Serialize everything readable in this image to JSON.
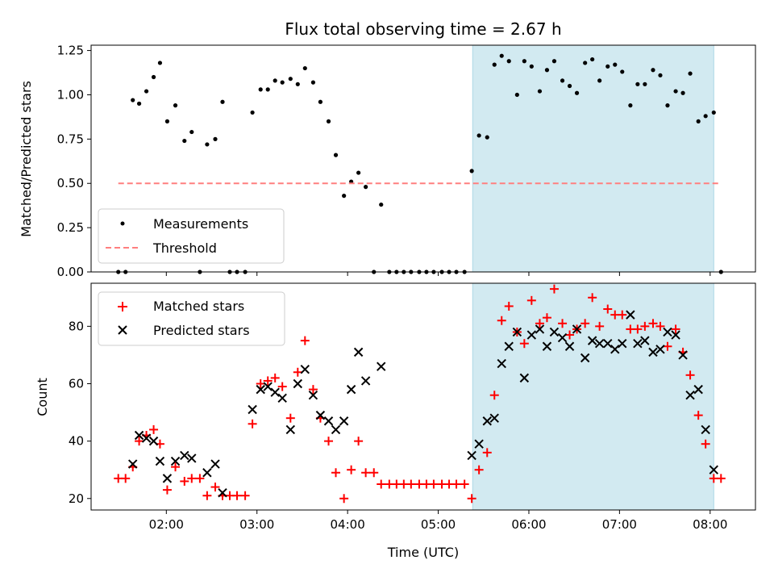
{
  "colors": {
    "measurement": "#000000",
    "threshold": "#ff7f7f",
    "matched": "#ff0000",
    "predicted": "#000000",
    "shade": "#add8e6"
  },
  "chart_data": [
    {
      "type": "scatter",
      "title": "Flux total observing time = 2.67 h",
      "ylabel": "Matched/Predicted stars",
      "xlabel": "",
      "x_unit": "hours UTC",
      "xlim": [
        1.17,
        8.5
      ],
      "ylim": [
        0.0,
        1.28
      ],
      "x_ticks": [
        2,
        3,
        4,
        5,
        6,
        7,
        8
      ],
      "y_ticks": [
        0.0,
        0.25,
        0.5,
        0.75,
        1.0,
        1.25
      ],
      "y_tick_labels": [
        "0.00",
        "0.25",
        "0.50",
        "0.75",
        "1.00",
        "1.25"
      ],
      "shaded_region": [
        5.38,
        8.04
      ],
      "legend": {
        "position": "lower-left",
        "entries": [
          "Measurements",
          "Threshold"
        ]
      },
      "series": [
        {
          "name": "Measurements",
          "marker": "dot",
          "points": [
            [
              1.47,
              0
            ],
            [
              1.55,
              0
            ],
            [
              1.63,
              0.97
            ],
            [
              1.7,
              0.95
            ],
            [
              1.78,
              1.02
            ],
            [
              1.86,
              1.1
            ],
            [
              1.93,
              1.18
            ],
            [
              2.01,
              0.85
            ],
            [
              2.1,
              0.94
            ],
            [
              2.2,
              0.74
            ],
            [
              2.28,
              0.79
            ],
            [
              2.37,
              0
            ],
            [
              2.45,
              0.72
            ],
            [
              2.54,
              0.75
            ],
            [
              2.62,
              0.96
            ],
            [
              2.7,
              0
            ],
            [
              2.78,
              0
            ],
            [
              2.87,
              0
            ],
            [
              2.95,
              0.9
            ],
            [
              3.04,
              1.03
            ],
            [
              3.12,
              1.03
            ],
            [
              3.2,
              1.08
            ],
            [
              3.28,
              1.07
            ],
            [
              3.37,
              1.09
            ],
            [
              3.45,
              1.06
            ],
            [
              3.53,
              1.15
            ],
            [
              3.62,
              1.07
            ],
            [
              3.7,
              0.96
            ],
            [
              3.79,
              0.85
            ],
            [
              3.87,
              0.66
            ],
            [
              3.96,
              0.43
            ],
            [
              4.04,
              0.51
            ],
            [
              4.12,
              0.56
            ],
            [
              4.2,
              0.48
            ],
            [
              4.29,
              0
            ],
            [
              4.37,
              0.38
            ],
            [
              4.46,
              0
            ],
            [
              4.54,
              0
            ],
            [
              4.62,
              0
            ],
            [
              4.7,
              0
            ],
            [
              4.79,
              0
            ],
            [
              4.87,
              0
            ],
            [
              4.95,
              0
            ],
            [
              5.04,
              0
            ],
            [
              5.12,
              0
            ],
            [
              5.2,
              0
            ],
            [
              5.29,
              0
            ],
            [
              5.37,
              0.57
            ],
            [
              5.45,
              0.77
            ],
            [
              5.54,
              0.76
            ],
            [
              5.62,
              1.17
            ],
            [
              5.7,
              1.22
            ],
            [
              5.78,
              1.19
            ],
            [
              5.87,
              1.0
            ],
            [
              5.95,
              1.19
            ],
            [
              6.03,
              1.16
            ],
            [
              6.12,
              1.02
            ],
            [
              6.2,
              1.14
            ],
            [
              6.28,
              1.19
            ],
            [
              6.37,
              1.08
            ],
            [
              6.45,
              1.05
            ],
            [
              6.53,
              1.01
            ],
            [
              6.62,
              1.18
            ],
            [
              6.7,
              1.2
            ],
            [
              6.78,
              1.08
            ],
            [
              6.87,
              1.16
            ],
            [
              6.95,
              1.17
            ],
            [
              7.03,
              1.13
            ],
            [
              7.12,
              0.94
            ],
            [
              7.2,
              1.06
            ],
            [
              7.28,
              1.06
            ],
            [
              7.37,
              1.14
            ],
            [
              7.45,
              1.11
            ],
            [
              7.53,
              0.94
            ],
            [
              7.62,
              1.02
            ],
            [
              7.7,
              1.01
            ],
            [
              7.78,
              1.12
            ],
            [
              7.87,
              0.85
            ],
            [
              7.95,
              0.88
            ],
            [
              8.04,
              0.9
            ],
            [
              8.12,
              0
            ]
          ]
        },
        {
          "name": "Threshold",
          "style": "dashed",
          "points": [
            [
              1.47,
              0.5
            ],
            [
              8.12,
              0.5
            ]
          ]
        }
      ]
    },
    {
      "type": "scatter",
      "title": "",
      "xlabel": "Time (UTC)",
      "ylabel": "Count",
      "x_unit": "hours UTC",
      "xlim": [
        1.17,
        8.5
      ],
      "ylim": [
        16,
        95
      ],
      "x_ticks": [
        2,
        3,
        4,
        5,
        6,
        7,
        8
      ],
      "x_tick_labels": [
        "02:00",
        "03:00",
        "04:00",
        "05:00",
        "06:00",
        "07:00",
        "08:00"
      ],
      "y_ticks": [
        20,
        40,
        60,
        80
      ],
      "y_tick_labels": [
        "20",
        "40",
        "60",
        "80"
      ],
      "shaded_region": [
        5.38,
        8.04
      ],
      "legend": {
        "position": "upper-left",
        "entries": [
          "Matched stars",
          "Predicted stars"
        ]
      },
      "series": [
        {
          "name": "Matched stars",
          "marker": "plus",
          "points": [
            [
              1.47,
              27
            ],
            [
              1.55,
              27
            ],
            [
              1.63,
              31
            ],
            [
              1.7,
              40
            ],
            [
              1.78,
              42
            ],
            [
              1.86,
              44
            ],
            [
              1.93,
              39
            ],
            [
              2.01,
              23
            ],
            [
              2.1,
              31
            ],
            [
              2.2,
              26
            ],
            [
              2.28,
              27
            ],
            [
              2.37,
              27
            ],
            [
              2.45,
              21
            ],
            [
              2.54,
              24
            ],
            [
              2.62,
              21
            ],
            [
              2.7,
              21
            ],
            [
              2.78,
              21
            ],
            [
              2.87,
              21
            ],
            [
              2.95,
              46
            ],
            [
              3.04,
              60
            ],
            [
              3.12,
              61
            ],
            [
              3.2,
              62
            ],
            [
              3.28,
              59
            ],
            [
              3.37,
              48
            ],
            [
              3.45,
              64
            ],
            [
              3.53,
              75
            ],
            [
              3.62,
              58
            ],
            [
              3.7,
              48
            ],
            [
              3.79,
              40
            ],
            [
              3.87,
              29
            ],
            [
              3.96,
              20
            ],
            [
              4.04,
              30
            ],
            [
              4.12,
              40
            ],
            [
              4.2,
              29
            ],
            [
              4.29,
              29
            ],
            [
              4.37,
              25
            ],
            [
              4.46,
              25
            ],
            [
              4.54,
              25
            ],
            [
              4.62,
              25
            ],
            [
              4.7,
              25
            ],
            [
              4.79,
              25
            ],
            [
              4.87,
              25
            ],
            [
              4.95,
              25
            ],
            [
              5.04,
              25
            ],
            [
              5.12,
              25
            ],
            [
              5.2,
              25
            ],
            [
              5.29,
              25
            ],
            [
              5.37,
              20
            ],
            [
              5.45,
              30
            ],
            [
              5.54,
              36
            ],
            [
              5.62,
              56
            ],
            [
              5.7,
              82
            ],
            [
              5.78,
              87
            ],
            [
              5.87,
              78
            ],
            [
              5.95,
              74
            ],
            [
              6.03,
              89
            ],
            [
              6.12,
              81
            ],
            [
              6.2,
              83
            ],
            [
              6.28,
              93
            ],
            [
              6.37,
              81
            ],
            [
              6.45,
              77
            ],
            [
              6.53,
              79
            ],
            [
              6.62,
              81
            ],
            [
              6.7,
              90
            ],
            [
              6.78,
              80
            ],
            [
              6.87,
              86
            ],
            [
              6.95,
              84
            ],
            [
              7.03,
              84
            ],
            [
              7.12,
              79
            ],
            [
              7.2,
              79
            ],
            [
              7.28,
              80
            ],
            [
              7.37,
              81
            ],
            [
              7.45,
              80
            ],
            [
              7.53,
              73
            ],
            [
              7.62,
              79
            ],
            [
              7.7,
              71
            ],
            [
              7.78,
              63
            ],
            [
              7.87,
              49
            ],
            [
              7.95,
              39
            ],
            [
              8.04,
              27
            ],
            [
              8.12,
              27
            ]
          ]
        },
        {
          "name": "Predicted stars",
          "marker": "x",
          "points": [
            [
              1.63,
              32
            ],
            [
              1.7,
              42
            ],
            [
              1.78,
              41
            ],
            [
              1.86,
              40
            ],
            [
              1.93,
              33
            ],
            [
              2.01,
              27
            ],
            [
              2.1,
              33
            ],
            [
              2.2,
              35
            ],
            [
              2.28,
              34
            ],
            [
              2.45,
              29
            ],
            [
              2.54,
              32
            ],
            [
              2.62,
              22
            ],
            [
              2.95,
              51
            ],
            [
              3.04,
              58
            ],
            [
              3.12,
              59
            ],
            [
              3.2,
              57
            ],
            [
              3.28,
              55
            ],
            [
              3.37,
              44
            ],
            [
              3.45,
              60
            ],
            [
              3.53,
              65
            ],
            [
              3.62,
              56
            ],
            [
              3.7,
              49
            ],
            [
              3.79,
              47
            ],
            [
              3.87,
              44
            ],
            [
              3.96,
              47
            ],
            [
              4.04,
              58
            ],
            [
              4.12,
              71
            ],
            [
              4.2,
              61
            ],
            [
              4.37,
              66
            ],
            [
              5.37,
              35
            ],
            [
              5.45,
              39
            ],
            [
              5.54,
              47
            ],
            [
              5.62,
              48
            ],
            [
              5.7,
              67
            ],
            [
              5.78,
              73
            ],
            [
              5.87,
              78
            ],
            [
              5.95,
              62
            ],
            [
              6.03,
              77
            ],
            [
              6.12,
              79
            ],
            [
              6.2,
              73
            ],
            [
              6.28,
              78
            ],
            [
              6.37,
              76
            ],
            [
              6.45,
              73
            ],
            [
              6.53,
              79
            ],
            [
              6.62,
              69
            ],
            [
              6.7,
              75
            ],
            [
              6.78,
              74
            ],
            [
              6.87,
              74
            ],
            [
              6.95,
              72
            ],
            [
              7.03,
              74
            ],
            [
              7.12,
              84
            ],
            [
              7.2,
              74
            ],
            [
              7.28,
              75
            ],
            [
              7.37,
              71
            ],
            [
              7.45,
              72
            ],
            [
              7.53,
              78
            ],
            [
              7.62,
              77
            ],
            [
              7.7,
              70
            ],
            [
              7.78,
              56
            ],
            [
              7.87,
              58
            ],
            [
              7.95,
              44
            ],
            [
              8.04,
              30
            ]
          ]
        }
      ]
    }
  ]
}
